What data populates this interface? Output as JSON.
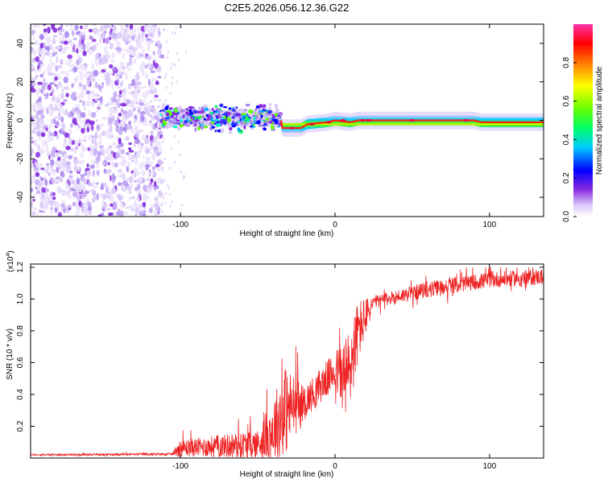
{
  "figure_title": "C2E5.2026.056.12.36.G22",
  "colors": {
    "signal": "#ee2222",
    "frame": "#000000",
    "noise": "#8a2be2"
  },
  "chart_data": [
    {
      "type": "heatmap",
      "title": "C2E5.2026.056.12.36.G22",
      "xlabel": "Height of straight line (km)",
      "ylabel": "Frequency (Hz)",
      "xlim": [
        -197,
        135
      ],
      "ylim": [
        -50,
        50
      ],
      "xticks": [
        -100,
        0,
        100
      ],
      "xtick_labels": [
        "-100",
        "0",
        "100"
      ],
      "yticks": [
        -40,
        -20,
        0,
        20,
        40
      ],
      "ytick_labels": [
        "-40",
        "-20",
        "0",
        "20",
        "40"
      ],
      "colorbar": {
        "label": "Normalized spectral amplitude",
        "range": [
          0,
          1
        ],
        "ticks": [
          0.0,
          0.2,
          0.4,
          0.6,
          0.8
        ],
        "tick_labels": [
          "0.0",
          "0.2",
          "0.4",
          "0.6",
          "0.8"
        ]
      },
      "regions": [
        {
          "name": "noise",
          "x_range": [
            -197,
            -112
          ],
          "freq_range": [
            -50,
            50
          ],
          "amplitude": "low (0.0-0.2)"
        },
        {
          "name": "scattered-band",
          "x_range": [
            -112,
            -35
          ],
          "freq_range": [
            -7,
            9
          ],
          "amplitude": "0.1-0.5"
        },
        {
          "name": "narrow-band",
          "x_range": [
            -35,
            135
          ],
          "amplitude": "0.5-1.0"
        }
      ],
      "ridge": [
        {
          "x": -112,
          "freq": 0
        },
        {
          "x": -35,
          "freq": 0
        },
        {
          "x": -34,
          "freq": -4
        },
        {
          "x": -22,
          "freq": -4
        },
        {
          "x": -18,
          "freq": -2
        },
        {
          "x": -5,
          "freq": -1
        },
        {
          "x": 0,
          "freq": 0
        },
        {
          "x": 10,
          "freq": -1
        },
        {
          "x": 15,
          "freq": 0
        },
        {
          "x": 90,
          "freq": 0
        },
        {
          "x": 95,
          "freq": -1
        },
        {
          "x": 135,
          "freq": -1
        }
      ]
    },
    {
      "type": "line",
      "xlabel": "Height of straight line (km)",
      "ylabel": "SNR (10 * v/v)",
      "y_multiplier_label": "(x10",
      "y_multiplier_exp": "4",
      "y_multiplier_close": ")",
      "xlim": [
        -197,
        135
      ],
      "ylim": [
        0,
        1.22
      ],
      "xticks": [
        -100,
        0,
        100
      ],
      "xtick_labels": [
        "-100",
        "0",
        "100"
      ],
      "yticks": [
        0.2,
        0.4,
        0.6,
        0.8,
        1.0,
        1.2
      ],
      "ytick_labels": [
        "0.2",
        "0.4",
        "0.6",
        "0.8",
        "1.0",
        "1.2"
      ],
      "series": [
        {
          "name": "SNR",
          "color": "#ee2222",
          "envelope": [
            {
              "x": -197,
              "base": 0.02,
              "spread": 0.005
            },
            {
              "x": -105,
              "base": 0.025,
              "spread": 0.008
            },
            {
              "x": -102,
              "base": 0.06,
              "spread": 0.05
            },
            {
              "x": -50,
              "base": 0.09,
              "spread": 0.09
            },
            {
              "x": -40,
              "base": 0.18,
              "spread": 0.2
            },
            {
              "x": -33,
              "base": 0.3,
              "spread": 0.3
            },
            {
              "x": -20,
              "base": 0.35,
              "spread": 0.1
            },
            {
              "x": 0,
              "base": 0.55,
              "spread": 0.12
            },
            {
              "x": 8,
              "base": 0.5,
              "spread": 0.3
            },
            {
              "x": 15,
              "base": 0.8,
              "spread": 0.2
            },
            {
              "x": 25,
              "base": 0.98,
              "spread": 0.04
            },
            {
              "x": 60,
              "base": 1.06,
              "spread": 0.05
            },
            {
              "x": 100,
              "base": 1.12,
              "spread": 0.05
            },
            {
              "x": 135,
              "base": 1.14,
              "spread": 0.05
            }
          ]
        }
      ]
    }
  ]
}
